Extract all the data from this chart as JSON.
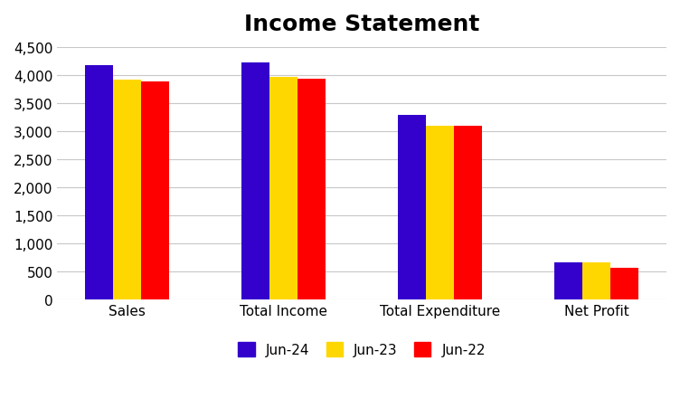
{
  "title": "Income Statement",
  "categories": [
    "Sales",
    "Total Income",
    "Total Expenditure",
    "Net Profit"
  ],
  "series": [
    {
      "label": "Jun-24",
      "color": "#3300CC",
      "values": [
        4180,
        4230,
        3290,
        660
      ]
    },
    {
      "label": "Jun-23",
      "color": "#FFD700",
      "values": [
        3930,
        3970,
        3110,
        670
      ]
    },
    {
      "label": "Jun-22",
      "color": "#FF0000",
      "values": [
        3890,
        3940,
        3110,
        570
      ]
    }
  ],
  "ylim": [
    0,
    4500
  ],
  "yticks": [
    0,
    500,
    1000,
    1500,
    2000,
    2500,
    3000,
    3500,
    4000,
    4500
  ],
  "background_color": "#ffffff",
  "grid_color": "#c8c8c8",
  "title_fontsize": 18,
  "legend_fontsize": 11,
  "tick_fontsize": 11,
  "bar_width": 0.18,
  "figsize": [
    7.52,
    4.52
  ],
  "dpi": 100
}
